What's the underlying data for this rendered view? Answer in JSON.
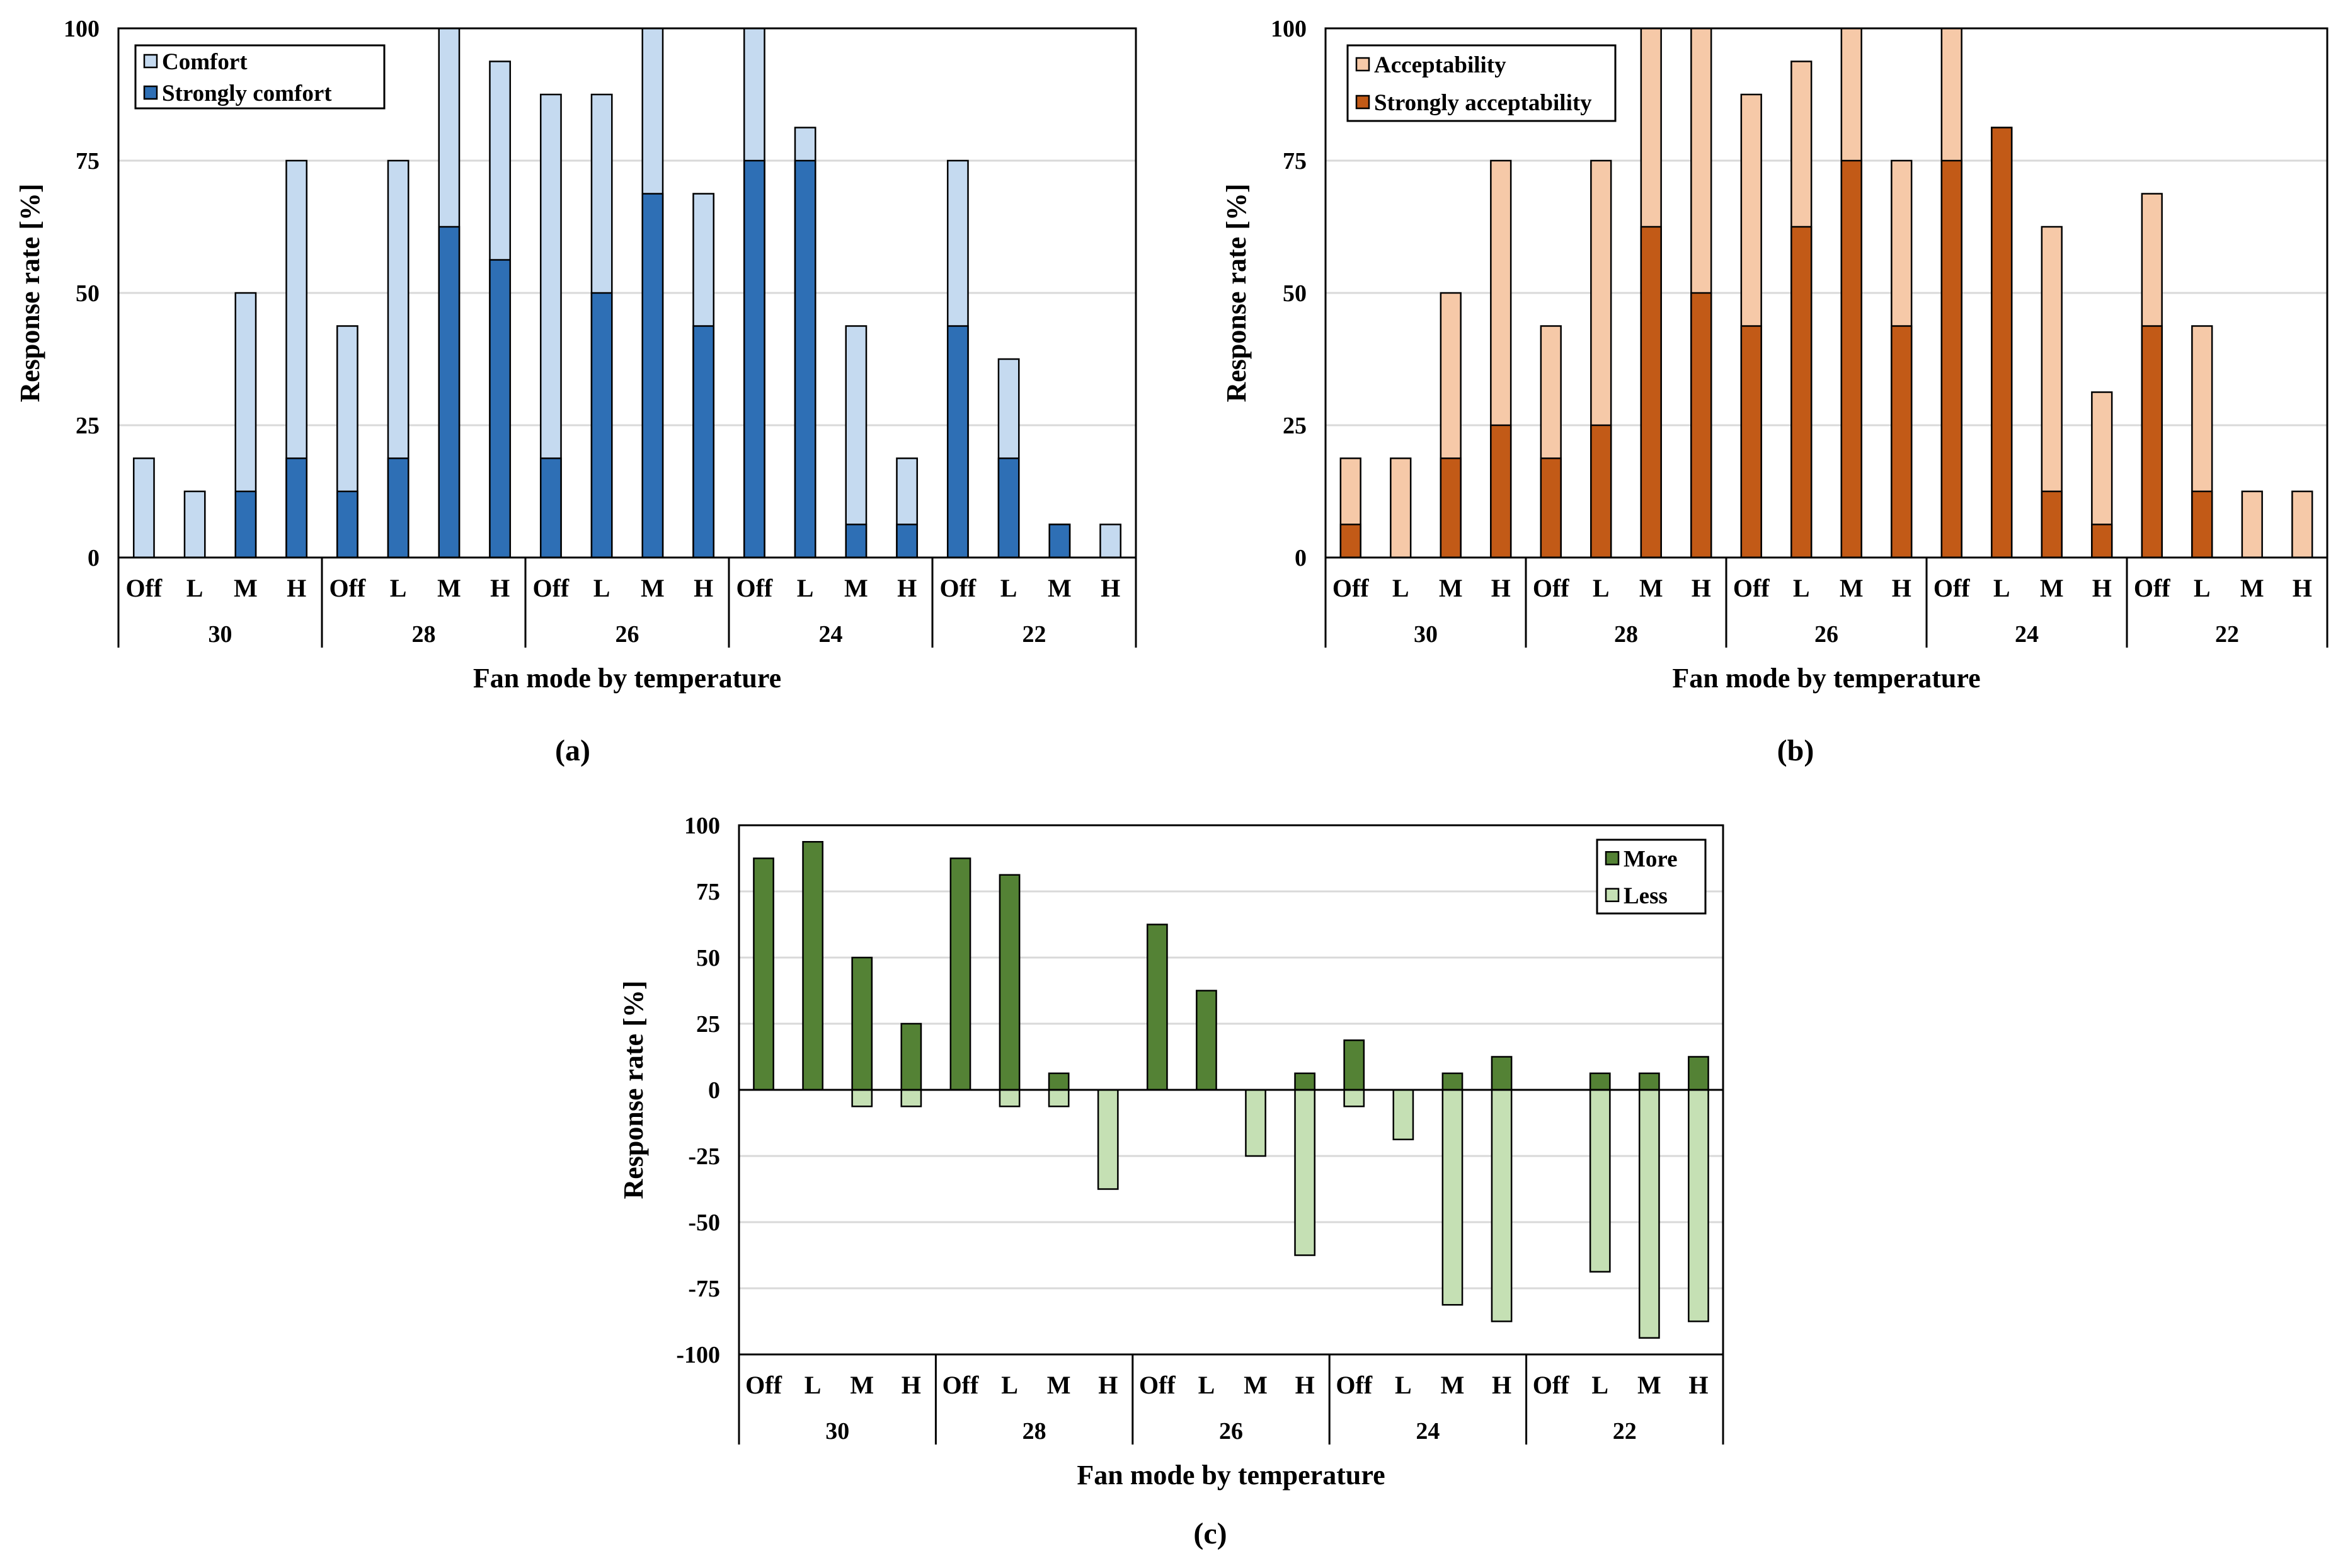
{
  "figure": {
    "panel_labels": [
      "(a)",
      "(b)",
      "(c)"
    ]
  },
  "chart_data": [
    {
      "type": "bar",
      "stacked": "overlay",
      "panel": "(a)",
      "title": "",
      "xlabel": "Fan mode by temperature",
      "ylabel": "Response rate [%]",
      "ylim": [
        0,
        100
      ],
      "yticks": [
        0,
        25,
        50,
        75,
        100
      ],
      "grid": true,
      "legend_position": "top-left",
      "groups": [
        "30",
        "28",
        "26",
        "24",
        "22"
      ],
      "modes": [
        "Off",
        "L",
        "M",
        "H"
      ],
      "colors": {
        "Comfort": "#c5daf0",
        "Strongly comfort": "#2e6fb5"
      },
      "series": [
        {
          "name": "Comfort",
          "values": [
            18.75,
            12.5,
            50,
            75,
            43.75,
            75,
            100,
            93.75,
            87.5,
            87.5,
            100,
            68.75,
            100,
            81.25,
            43.75,
            18.75,
            75,
            37.5,
            6.25,
            6.25
          ]
        },
        {
          "name": "Strongly comfort",
          "values": [
            0,
            0,
            12.5,
            18.75,
            12.5,
            18.75,
            62.5,
            56.25,
            18.75,
            50,
            68.75,
            43.75,
            75,
            75,
            6.25,
            6.25,
            43.75,
            18.75,
            6.25,
            0
          ]
        }
      ]
    },
    {
      "type": "bar",
      "stacked": "overlay",
      "panel": "(b)",
      "title": "",
      "xlabel": "Fan mode by temperature",
      "ylabel": "Response rate [%]",
      "ylim": [
        0,
        100
      ],
      "yticks": [
        0,
        25,
        50,
        75,
        100
      ],
      "grid": true,
      "legend_position": "top-left",
      "groups": [
        "30",
        "28",
        "26",
        "24",
        "22"
      ],
      "modes": [
        "Off",
        "L",
        "M",
        "H"
      ],
      "colors": {
        "Acceptability": "#f6c9a8",
        "Strongly acceptability": "#c25a17"
      },
      "series": [
        {
          "name": "Acceptability",
          "values": [
            18.75,
            18.75,
            50,
            75,
            43.75,
            75,
            100,
            100,
            87.5,
            93.75,
            100,
            75,
            100,
            81.25,
            62.5,
            31.25,
            68.75,
            43.75,
            12.5,
            12.5
          ]
        },
        {
          "name": "Strongly acceptability",
          "values": [
            6.25,
            0,
            18.75,
            25,
            18.75,
            25,
            62.5,
            50,
            43.75,
            62.5,
            75,
            43.75,
            75,
            81.25,
            12.5,
            6.25,
            43.75,
            12.5,
            0,
            0
          ]
        }
      ]
    },
    {
      "type": "bar",
      "stacked": "diverging",
      "panel": "(c)",
      "title": "",
      "xlabel": "Fan mode by temperature",
      "ylabel": "Response rate [%]",
      "ylim": [
        -100,
        100
      ],
      "yticks": [
        -100,
        -75,
        -50,
        -25,
        0,
        25,
        50,
        75,
        100
      ],
      "grid": true,
      "legend_position": "top-right",
      "groups": [
        "30",
        "28",
        "26",
        "24",
        "22"
      ],
      "modes": [
        "Off",
        "L",
        "M",
        "H"
      ],
      "colors": {
        "More": "#548235",
        "Less": "#c5e0b4"
      },
      "series": [
        {
          "name": "More",
          "values": [
            87.5,
            93.75,
            50,
            25,
            87.5,
            81.25,
            6.25,
            0,
            62.5,
            37.5,
            0,
            6.25,
            18.75,
            0,
            6.25,
            12.5,
            0,
            6.25,
            6.25,
            12.5
          ]
        },
        {
          "name": "Less",
          "values": [
            0,
            0,
            -6.25,
            -6.25,
            0,
            -6.25,
            -6.25,
            -37.5,
            0,
            0,
            -25,
            -62.5,
            -6.25,
            -18.75,
            -81.25,
            -87.5,
            0,
            -68.75,
            -93.75,
            -87.5
          ]
        }
      ]
    }
  ]
}
